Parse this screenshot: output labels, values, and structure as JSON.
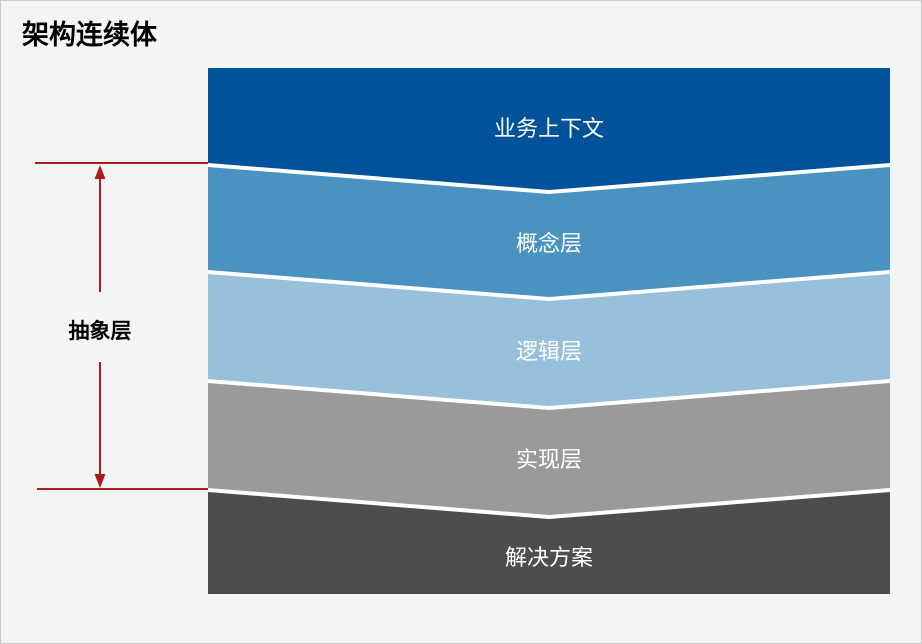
{
  "title": "架构连续体",
  "background": "#f3f5f4",
  "layers": [
    {
      "label": "业务上下文",
      "color": "#00529b"
    },
    {
      "label": "概念层",
      "color": "#4a93c0"
    },
    {
      "label": "逻辑层",
      "color": "#98c0dc"
    },
    {
      "label": "实现层",
      "color": "#9a9a9a"
    },
    {
      "label": "解决方案",
      "color": "#4d4d4d"
    }
  ],
  "abstraction": {
    "label": "抽象层",
    "color": "#a81c1c"
  }
}
